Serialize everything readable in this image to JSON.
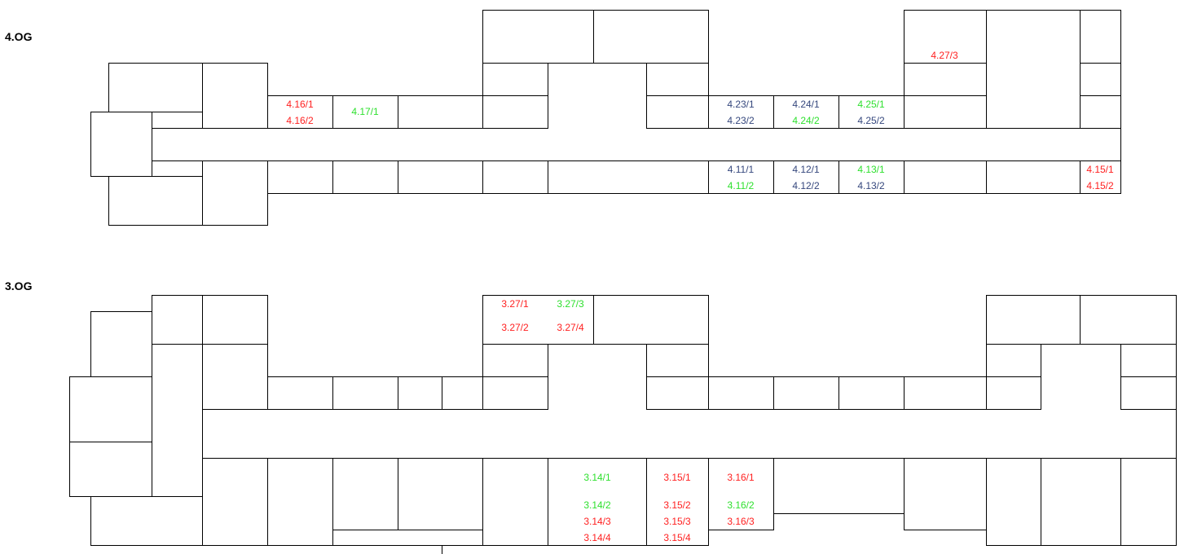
{
  "colors": {
    "red": "#ff1f1f",
    "green": "#2ee02e",
    "blue": "#35477d",
    "line": "#000000"
  },
  "floors": [
    {
      "title": "4.OG",
      "labels": [
        {
          "text": "4.27/3",
          "status": "red"
        },
        {
          "text": "4.16/1",
          "status": "red"
        },
        {
          "text": "4.16/2",
          "status": "red"
        },
        {
          "text": "4.17/1",
          "status": "green"
        },
        {
          "text": "4.23/1",
          "status": "blue"
        },
        {
          "text": "4.23/2",
          "status": "blue"
        },
        {
          "text": "4.24/1",
          "status": "blue"
        },
        {
          "text": "4.24/2",
          "status": "green"
        },
        {
          "text": "4.25/1",
          "status": "green"
        },
        {
          "text": "4.25/2",
          "status": "blue"
        },
        {
          "text": "4.11/1",
          "status": "blue"
        },
        {
          "text": "4.11/2",
          "status": "green"
        },
        {
          "text": "4.12/1",
          "status": "blue"
        },
        {
          "text": "4.12/2",
          "status": "blue"
        },
        {
          "text": "4.13/1",
          "status": "green"
        },
        {
          "text": "4.13/2",
          "status": "blue"
        },
        {
          "text": "4.15/1",
          "status": "red"
        },
        {
          "text": "4.15/2",
          "status": "red"
        }
      ]
    },
    {
      "title": "3.OG",
      "labels": [
        {
          "text": "3.27/1",
          "status": "red"
        },
        {
          "text": "3.27/3",
          "status": "green"
        },
        {
          "text": "3.27/2",
          "status": "red"
        },
        {
          "text": "3.27/4",
          "status": "red"
        },
        {
          "text": "3.14/1",
          "status": "green"
        },
        {
          "text": "3.14/2",
          "status": "green"
        },
        {
          "text": "3.14/3",
          "status": "red"
        },
        {
          "text": "3.14/4",
          "status": "red"
        },
        {
          "text": "3.15/1",
          "status": "red"
        },
        {
          "text": "3.15/2",
          "status": "red"
        },
        {
          "text": "3.15/3",
          "status": "red"
        },
        {
          "text": "3.15/4",
          "status": "red"
        },
        {
          "text": "3.16/1",
          "status": "red"
        },
        {
          "text": "3.16/2",
          "status": "green"
        },
        {
          "text": "3.16/3",
          "status": "red"
        }
      ]
    }
  ]
}
